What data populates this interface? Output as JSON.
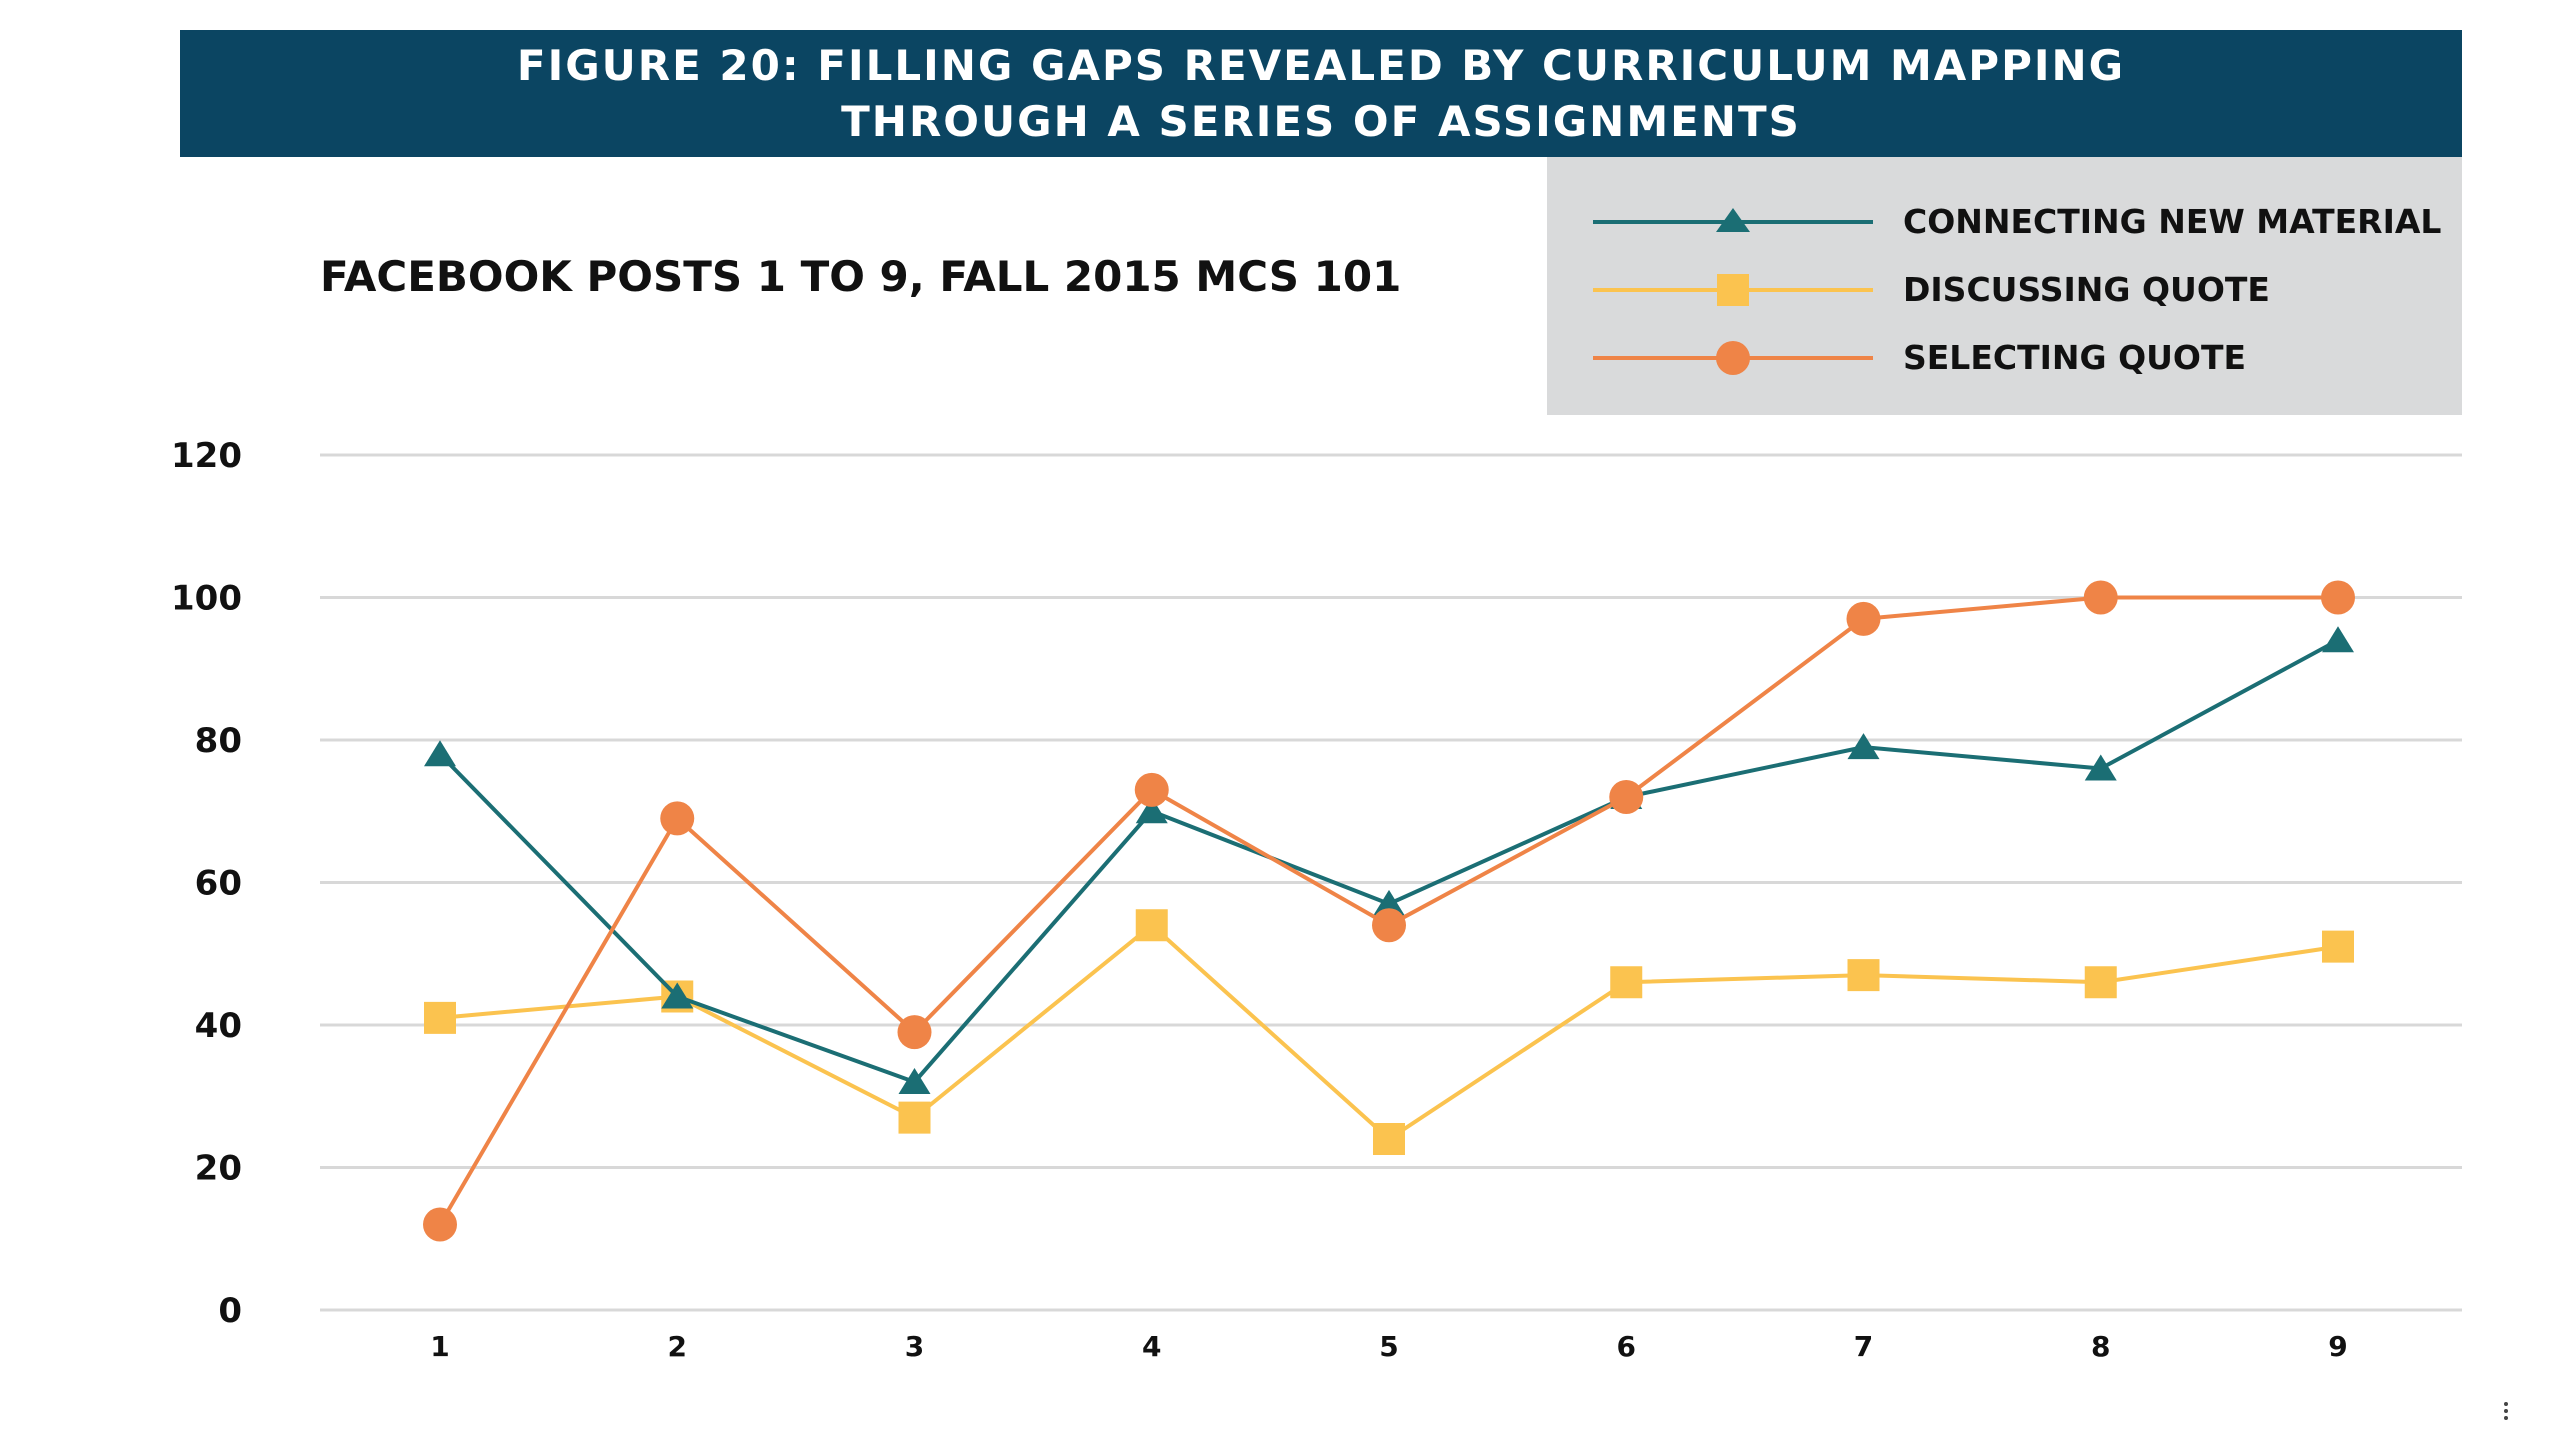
{
  "figure_title_line1": "FIGURE 20: FILLING GAPS REVEALED BY CURRICULUM MAPPING",
  "figure_title_line2": "THROUGH A SERIES OF ASSIGNMENTS",
  "colors": {
    "banner": "#0b4562",
    "legend_bg": "#d9dadb",
    "connecting": "#1b6e74",
    "discussing": "#fbc34f",
    "selecting": "#ef8447",
    "gridline": "#d8d8d8"
  },
  "chart_data": {
    "type": "line",
    "title": "FACEBOOK POSTS 1 TO 9, FALL 2015 MCS 101",
    "xlabel": "",
    "ylabel": "",
    "categories": [
      "1",
      "2",
      "3",
      "4",
      "5",
      "6",
      "7",
      "8",
      "9"
    ],
    "ylim": [
      0,
      120
    ],
    "yticks": [
      0,
      20,
      40,
      60,
      80,
      100,
      120
    ],
    "grid": true,
    "legend_position": "top-right",
    "series": [
      {
        "name": "CONNECTING NEW MATERIAL",
        "marker": "triangle",
        "color": "#1b6e74",
        "values": [
          78,
          44,
          32,
          70,
          57,
          72,
          79,
          76,
          94
        ]
      },
      {
        "name": "DISCUSSING QUOTE",
        "marker": "square",
        "color": "#fbc34f",
        "values": [
          41,
          44,
          27,
          54,
          24,
          46,
          47,
          46,
          51
        ]
      },
      {
        "name": "SELECTING QUOTE",
        "marker": "circle",
        "color": "#ef8447",
        "values": [
          12,
          69,
          39,
          73,
          54,
          72,
          97,
          100,
          100
        ]
      }
    ]
  }
}
